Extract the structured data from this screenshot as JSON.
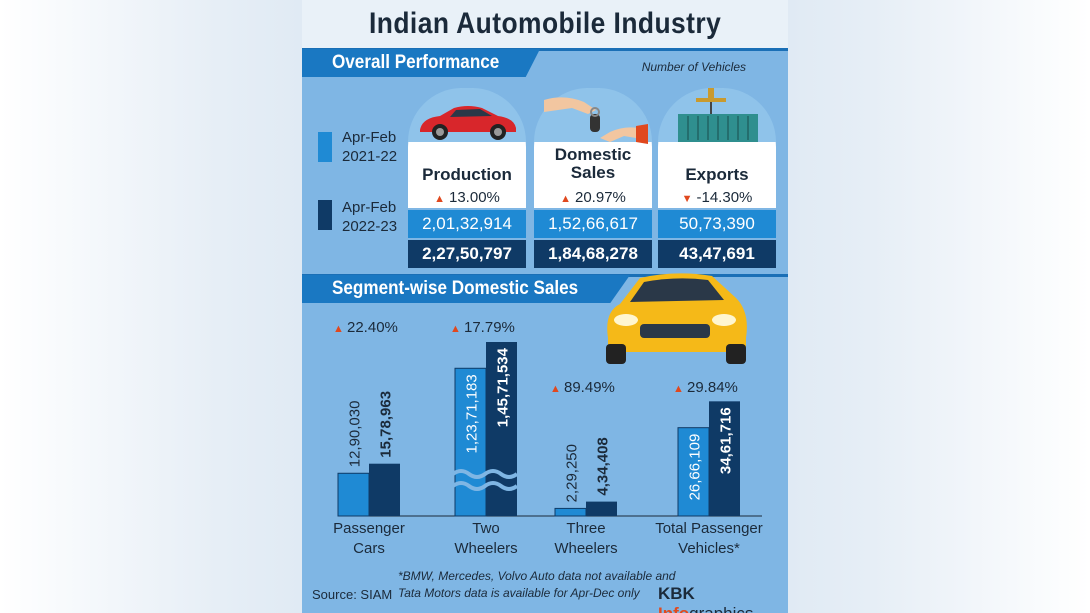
{
  "title": "Indian Automobile Industry",
  "overall": {
    "section_title": "Overall Performance",
    "unit_note": "Number of Vehicles",
    "legend": [
      {
        "label_line1": "Apr-Feb",
        "label_line2": "2021-22",
        "color": "#1f8ad4"
      },
      {
        "label_line1": "Apr-Feb",
        "label_line2": "2022-23",
        "color": "#0f3a66"
      }
    ],
    "cards": [
      {
        "label_line1": "Production",
        "label_line2": "",
        "change": "13.00%",
        "direction": "up",
        "value_2122": "2,01,32,914",
        "value_2223": "2,27,50,797",
        "icon": "red-sports-car-icon"
      },
      {
        "label_line1": "Domestic",
        "label_line2": "Sales",
        "change": "20.97%",
        "direction": "up",
        "value_2122": "1,52,66,617",
        "value_2223": "1,84,68,278",
        "icon": "car-key-handover-icon"
      },
      {
        "label_line1": "Exports",
        "label_line2": "",
        "change": "-14.30%",
        "direction": "down",
        "value_2122": "50,73,390",
        "value_2223": "43,47,691",
        "icon": "shipping-container-crane-icon"
      }
    ]
  },
  "segment": {
    "section_title": "Segment-wise Domestic Sales",
    "decorative_icon": "yellow-hatchback-car-icon"
  },
  "chart_data": {
    "type": "bar",
    "categories": [
      "Passenger Cars",
      "Two Wheelers",
      "Three Wheelers",
      "Total Passenger Vehicles*"
    ],
    "category_lines": [
      [
        "Passenger",
        "Cars"
      ],
      [
        "Two",
        "Wheelers"
      ],
      [
        "Three",
        "Wheelers"
      ],
      [
        "Total Passenger",
        "Vehicles*"
      ]
    ],
    "series": [
      {
        "name": "Apr-Feb 2021-22",
        "values": [
          1290030,
          12371183,
          229250,
          2666109
        ],
        "labels": [
          "12,90,030",
          "1,23,71,183",
          "2,29,250",
          "26,66,109"
        ],
        "color": "#1f8ad4"
      },
      {
        "name": "Apr-Feb 2022-23",
        "values": [
          1578963,
          14571534,
          434408,
          3461716
        ],
        "labels": [
          "15,78,963",
          "1,45,71,534",
          "4,34,408",
          "34,61,716"
        ],
        "color": "#0f3a66"
      }
    ],
    "growth": [
      "22.40%",
      "17.79%",
      "89.49%",
      "29.84%"
    ],
    "broken_axis_category": "Two Wheelers",
    "colors": {
      "series1": "#1f8ad4",
      "series2": "#0f3a66",
      "growth_arrow": "#e0481e"
    }
  },
  "footer": {
    "source": "Source: SIAM",
    "note_line1": "*BMW, Mercedes, Volvo Auto data not available and",
    "note_line2": "Tata Motors data is available for Apr-Dec only",
    "brand_bold": "KBK",
    "brand_accent": "Info",
    "brand_rest": "graphics"
  }
}
